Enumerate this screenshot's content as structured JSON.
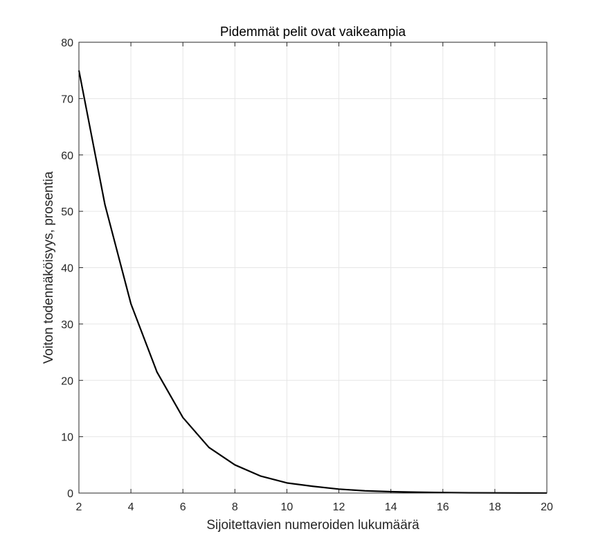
{
  "chart_data": {
    "type": "line",
    "title": "Pidemmät pelit ovat vaikeampia",
    "xlabel": "Sijoitettavien numeroiden lukumäärä",
    "ylabel": "Voiton todennäköisyys, prosentia",
    "xlim": [
      2,
      20
    ],
    "ylim": [
      0,
      80
    ],
    "xticks": [
      2,
      4,
      6,
      8,
      10,
      12,
      14,
      16,
      18,
      20
    ],
    "yticks": [
      0,
      10,
      20,
      30,
      40,
      50,
      60,
      70,
      80
    ],
    "grid": true,
    "series": [
      {
        "color": "#000000",
        "x": [
          2,
          3,
          4,
          5,
          6,
          7,
          8,
          9,
          10,
          11,
          12,
          13,
          14,
          15,
          16,
          17,
          18,
          19,
          20
        ],
        "y": [
          75,
          51.2,
          33.6,
          21.5,
          13.4,
          8.1,
          5.0,
          3.0,
          1.8,
          1.2,
          0.7,
          0.4,
          0.25,
          0.15,
          0.09,
          0.05,
          0.03,
          0.02,
          0.01
        ]
      }
    ]
  }
}
